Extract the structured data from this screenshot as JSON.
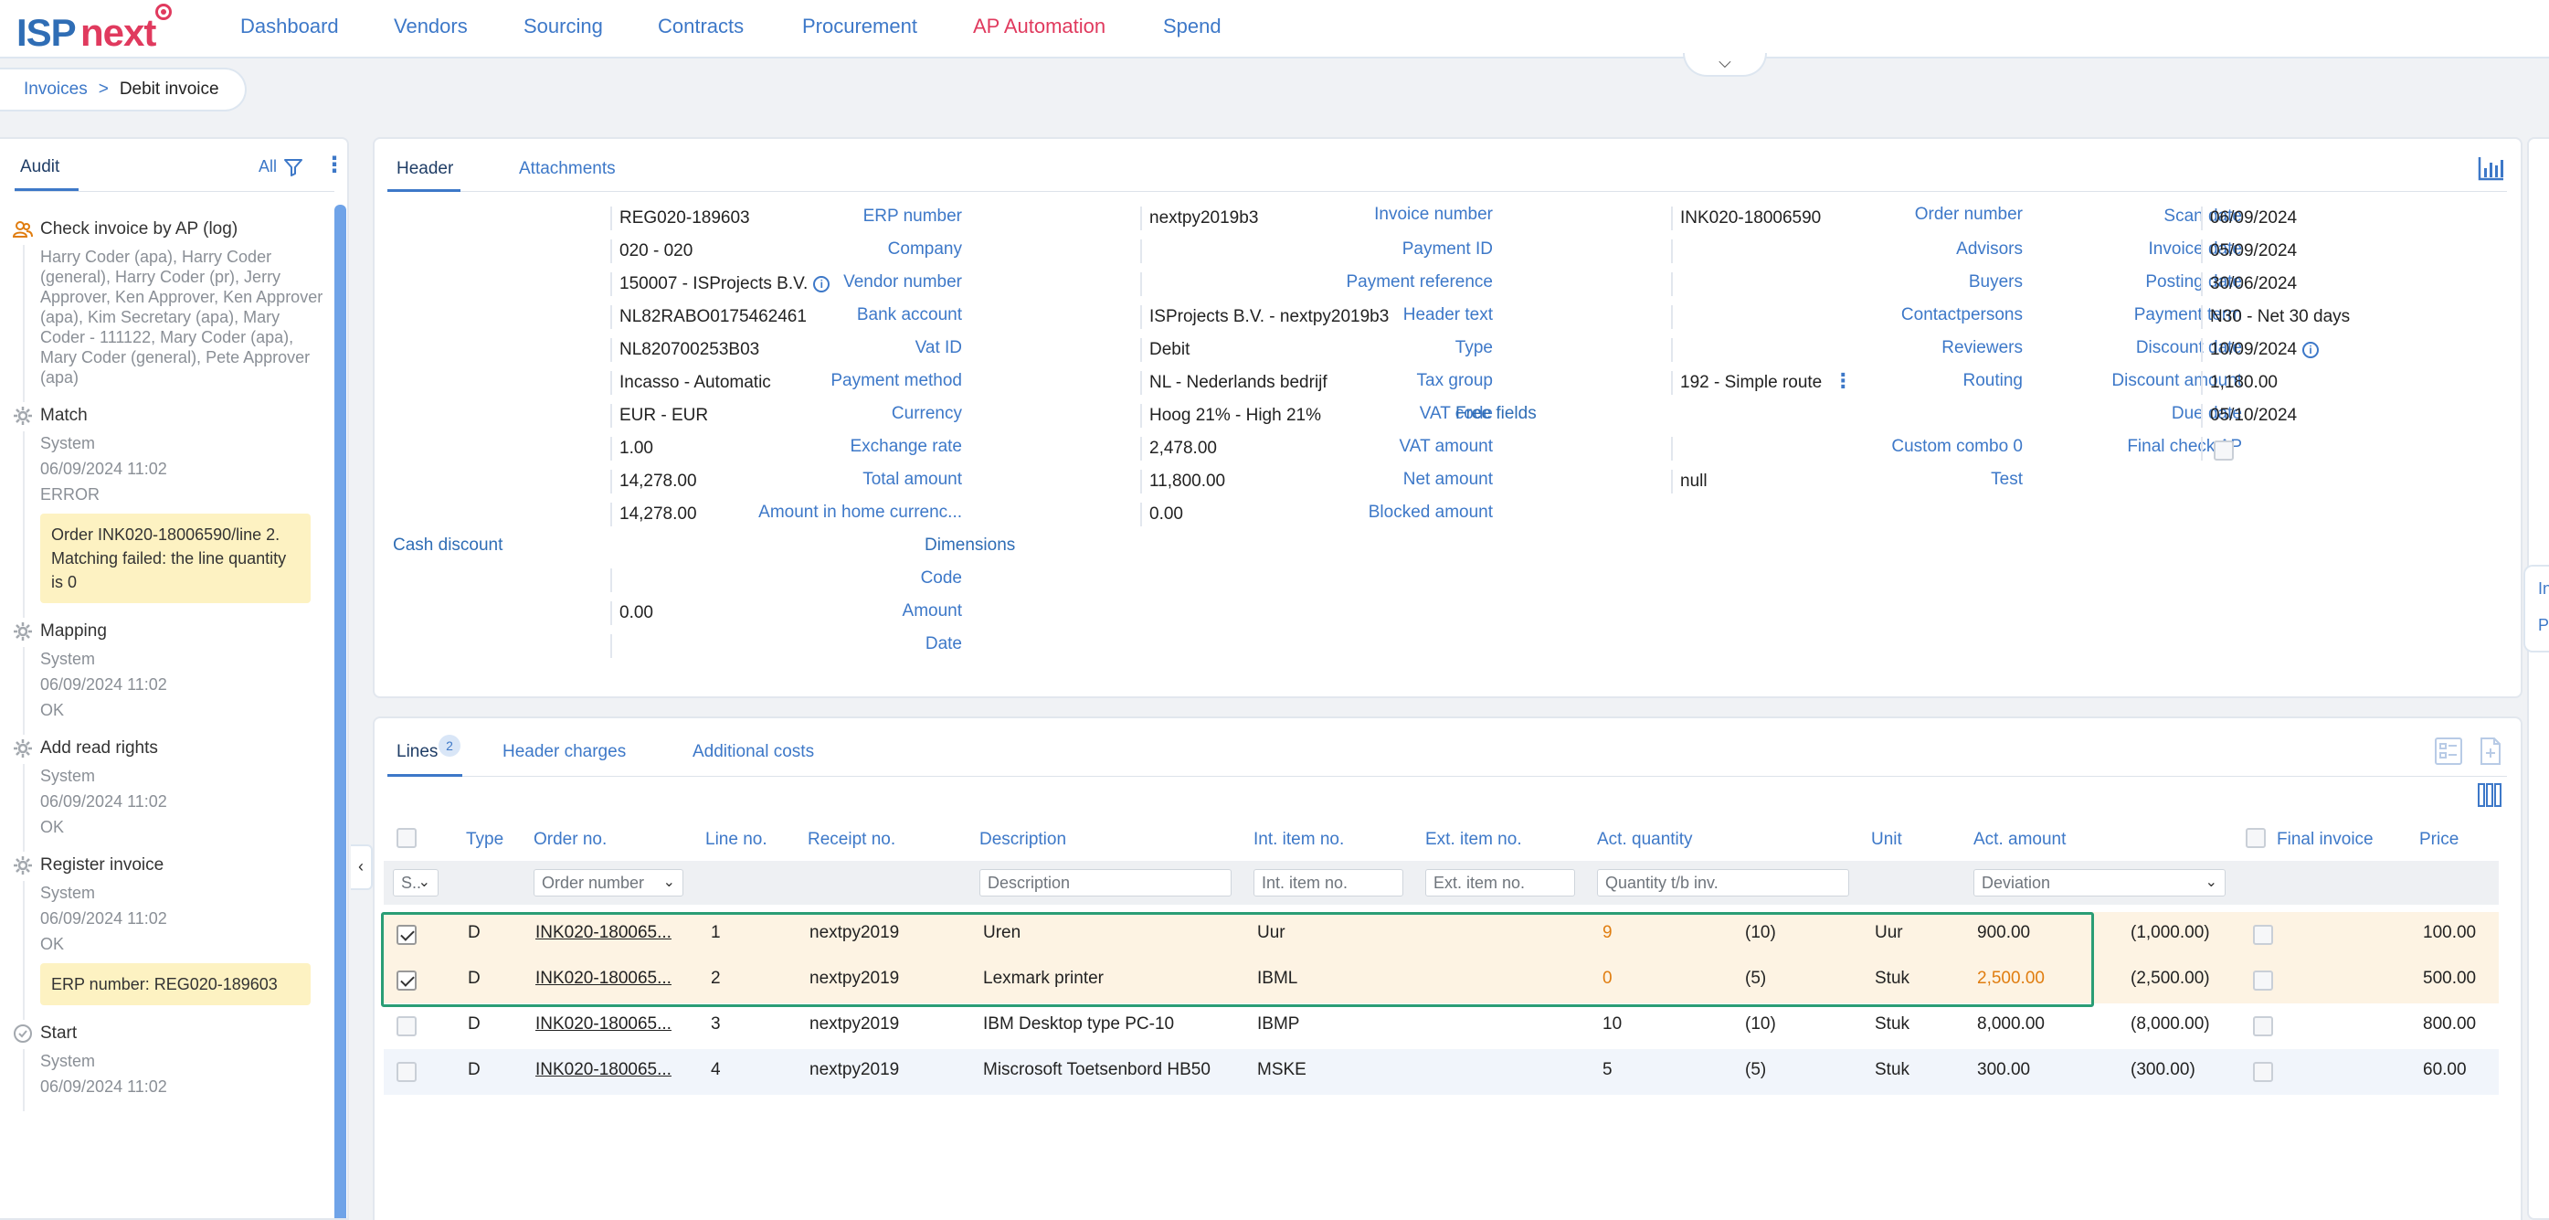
{
  "app": {
    "logo_part1": "ISP",
    "logo_part2": "next"
  },
  "nav": {
    "items": [
      "Dashboard",
      "Vendors",
      "Sourcing",
      "Contracts",
      "Procurement",
      "AP Automation",
      "Spend"
    ],
    "active_index": 5,
    "toggle_icon": "chevron-down-icon"
  },
  "breadcrumb": {
    "parent": "Invoices",
    "separator": ">",
    "current": "Debit invoice"
  },
  "audit": {
    "tab_label": "Audit",
    "filter_label": "All",
    "entries": [
      {
        "icon": "people-icon",
        "title": "Check invoice by AP (log)",
        "users": "Harry Coder (apa), Harry Coder (general), Harry Coder (pr), Jerry Approver, Ken Approver, Ken Approver (apa), Kim Secretary (apa), Mary Coder - 111122, Mary Coder (apa), Mary Coder (general), Pete Approver (apa)"
      },
      {
        "icon": "gear-icon",
        "title": "Match",
        "actor": "System",
        "time": "06/09/2024 11:02",
        "status": "ERROR",
        "note": "Order INK020-18006590/line 2. Matching failed: the line quantity is 0"
      },
      {
        "icon": "gear-icon",
        "title": "Mapping",
        "actor": "System",
        "time": "06/09/2024 11:02",
        "status": "OK"
      },
      {
        "icon": "gear-icon",
        "title": "Add read rights",
        "actor": "System",
        "time": "06/09/2024 11:02",
        "status": "OK"
      },
      {
        "icon": "gear-icon",
        "title": "Register invoice",
        "actor": "System",
        "time": "06/09/2024 11:02",
        "status": "OK",
        "note": "ERP number: REG020-189603"
      },
      {
        "icon": "start-icon",
        "title": "Start",
        "actor": "System",
        "time": "06/09/2024 11:02"
      }
    ]
  },
  "header": {
    "tabs": [
      "Header",
      "Attachments"
    ],
    "col1": [
      {
        "label": "ERP number",
        "value": "REG020-189603"
      },
      {
        "label": "Company",
        "value": "020 - 020"
      },
      {
        "label": "Vendor number",
        "value": "150007 - ISProjects B.V."
      },
      {
        "label": "Bank account",
        "value": "NL82RABO0175462461"
      },
      {
        "label": "Vat ID",
        "value": "NL820700253B03"
      },
      {
        "label": "Payment method",
        "value": "Incasso - Automatic"
      },
      {
        "label": "Currency",
        "value": "EUR - EUR"
      },
      {
        "label": "Exchange rate",
        "value": "1.00"
      },
      {
        "label": "Total amount",
        "value": "14,278.00"
      },
      {
        "label": "Amount in home currenc...",
        "value": "14,278.00"
      }
    ],
    "col2": [
      {
        "label": "Invoice number",
        "value": "nextpy2019b3"
      },
      {
        "label": "Payment ID",
        "value": ""
      },
      {
        "label": "Payment reference",
        "value": ""
      },
      {
        "label": "Header text",
        "value": "ISProjects B.V. - nextpy2019b3"
      },
      {
        "label": "Type",
        "value": "Debit"
      },
      {
        "label": "Tax group",
        "value": "NL - Nederlands bedrijf"
      },
      {
        "label": "VAT code",
        "value": "Hoog 21% - High 21%"
      },
      {
        "label": "VAT amount",
        "value": "2,478.00"
      },
      {
        "label": "Net amount",
        "value": "11,800.00"
      },
      {
        "label": "Blocked amount",
        "value": "0.00"
      }
    ],
    "col3": [
      {
        "label": "Order number",
        "value": "INK020-18006590"
      },
      {
        "label": "Advisors",
        "value": ""
      },
      {
        "label": "Buyers",
        "value": ""
      },
      {
        "label": "Contactpersons",
        "value": ""
      },
      {
        "label": "Reviewers",
        "value": ""
      },
      {
        "label": "Routing",
        "value": "192 - Simple route"
      }
    ],
    "free_fields_title": "Free fields",
    "col3_free": [
      {
        "label": "Custom combo 0",
        "value": ""
      },
      {
        "label": "Test",
        "value": "null"
      }
    ],
    "col4": [
      {
        "label": "Scan date",
        "value": "06/09/2024"
      },
      {
        "label": "Invoice date",
        "value": "05/09/2024"
      },
      {
        "label": "Posting date",
        "value": "30/06/2024"
      },
      {
        "label": "Payment term",
        "value": "N30 - Net 30 days"
      },
      {
        "label": "Discount date",
        "value": "10/09/2024"
      },
      {
        "label": "Discount amount",
        "value": "1,180.00"
      },
      {
        "label": "Due date",
        "value": "05/10/2024"
      },
      {
        "label": "Final check AP",
        "value": ""
      }
    ],
    "cash_discount_title": "Cash discount",
    "cash_discount": [
      {
        "label": "Code",
        "value": ""
      },
      {
        "label": "Amount",
        "value": "0.00"
      },
      {
        "label": "Date",
        "value": ""
      }
    ],
    "dimensions_title": "Dimensions"
  },
  "lines": {
    "tabs": [
      "Lines",
      "Header charges",
      "Additional costs"
    ],
    "lines_count": "2",
    "columns": [
      "Type",
      "Order no.",
      "Line no.",
      "Receipt no.",
      "Description",
      "Int. item no.",
      "Ext. item no.",
      "Act. quantity",
      "Unit",
      "Act. amount",
      "Final invoice",
      "Price"
    ],
    "filters": {
      "status": "S..",
      "order": "Order number",
      "description": "Description",
      "int_item": "Int. item no.",
      "ext_item": "Ext. item no.",
      "quantity": "Quantity t/b inv.",
      "amount": "Deviation"
    },
    "rows": [
      {
        "checked": true,
        "type": "D",
        "order": "INK020-180065...",
        "line": "1",
        "receipt": "nextpy2019",
        "desc": "Uren",
        "int_item": "Uur",
        "ext_item": "",
        "qty": "9",
        "qty_dev": "(10)",
        "unit": "Uur",
        "amount": "900.00",
        "amount_dev": "(1,000.00)",
        "price": "100.00",
        "qty_warn": true,
        "amount_warn": false
      },
      {
        "checked": true,
        "type": "D",
        "order": "INK020-180065...",
        "line": "2",
        "receipt": "nextpy2019",
        "desc": "Lexmark printer",
        "int_item": "IBML",
        "ext_item": "",
        "qty": "0",
        "qty_dev": "(5)",
        "unit": "Stuk",
        "amount": "2,500.00",
        "amount_dev": "(2,500.00)",
        "price": "500.00",
        "qty_warn": true,
        "amount_warn": true
      },
      {
        "checked": false,
        "type": "D",
        "order": "INK020-180065...",
        "line": "3",
        "receipt": "nextpy2019",
        "desc": "IBM Desktop type PC-10",
        "int_item": "IBMP",
        "ext_item": "",
        "qty": "10",
        "qty_dev": "(10)",
        "unit": "Stuk",
        "amount": "8,000.00",
        "amount_dev": "(8,000.00)",
        "price": "800.00",
        "qty_warn": false,
        "amount_warn": false
      },
      {
        "checked": false,
        "type": "D",
        "order": "INK020-180065...",
        "line": "4",
        "receipt": "nextpy2019",
        "desc": "Miscrosoft Toetsenbord HB50",
        "int_item": "MSKE",
        "ext_item": "",
        "qty": "5",
        "qty_dev": "(5)",
        "unit": "Stuk",
        "amount": "300.00",
        "amount_dev": "(300.00)",
        "price": "60.00",
        "qty_warn": false,
        "amount_warn": false
      }
    ]
  },
  "side_flyout": {
    "label1": "In",
    "label2": "P"
  },
  "colors": {
    "accent": "#3d78c8",
    "brand_pink": "#e03a5e",
    "warning": "#e07d10",
    "highlight": "#2a9d75"
  }
}
